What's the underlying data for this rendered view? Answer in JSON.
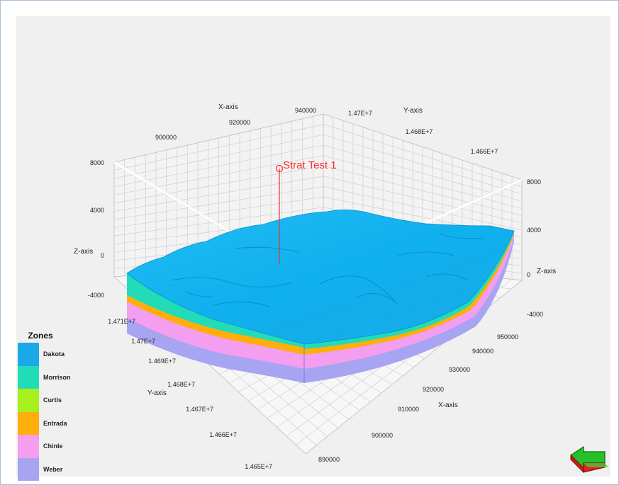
{
  "axes": {
    "x_axis_title": "X-axis",
    "y_axis_title": "Y-axis",
    "z_axis_title": "Z-axis",
    "x_top_ticks": [
      "900000",
      "920000",
      "940000"
    ],
    "y_top_ticks": [
      "1.47E+7",
      "1.468E+7",
      "1.466E+7"
    ],
    "z_left_ticks": [
      "8000",
      "4000",
      "0",
      "-4000"
    ],
    "z_right_ticks": [
      "8000",
      "4000",
      "0",
      "-4000"
    ],
    "y_front_ticks": [
      "1.471E+7",
      "1.47E+7",
      "1.469E+7",
      "1.468E+7",
      "1.467E+7",
      "1.466E+7",
      "1.465E+7"
    ],
    "x_front_ticks": [
      "950000",
      "940000",
      "930000",
      "920000",
      "910000",
      "900000",
      "890000"
    ]
  },
  "well": {
    "label": "Strat Test 1",
    "color": "#ff2a2a"
  },
  "legend": {
    "title": "Zones",
    "zones": [
      {
        "name": "Dakota",
        "color": "#1aaae8"
      },
      {
        "name": "Morrison",
        "color": "#22dcb8"
      },
      {
        "name": "Curtis",
        "color": "#a6f01e"
      },
      {
        "name": "Entrada",
        "color": "#ffae0c"
      },
      {
        "name": "Chinle",
        "color": "#f49ef0"
      },
      {
        "name": "Weber",
        "color": "#a7a4f2"
      }
    ]
  },
  "surface": {
    "top_color": "#16b4f0",
    "ridge_color": "#0a82c8"
  },
  "nav_icon": "navigation-arrow-icon"
}
